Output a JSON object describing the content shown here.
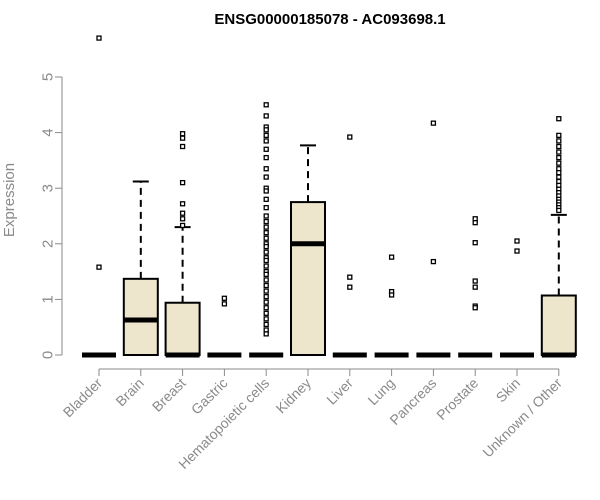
{
  "chart_data": {
    "type": "boxplot",
    "title": "ENSG00000185078 - AC093698.1",
    "ylabel": "Expression",
    "xlabel": "",
    "ylim": [
      0,
      5.6
    ],
    "yticks": [
      0,
      1,
      2,
      3,
      4,
      5
    ],
    "grid": false,
    "legend": "none",
    "colors": {
      "box_fill": "#ede6cd",
      "stroke": "#000000",
      "axis": "#8a8a8a"
    },
    "categories": [
      "Bladder",
      "Brain",
      "Breast",
      "Gastric",
      "Hematopoietic cells",
      "Kidney",
      "Liver",
      "Lung",
      "Pancreas",
      "Prostate",
      "Skin",
      "Unknown / Other"
    ],
    "boxes": [
      {
        "category": "Bladder",
        "whisker_low": 0,
        "q1": 0,
        "median": 0,
        "q3": 0,
        "whisker_high": 0,
        "outliers": [
          5.7,
          1.58
        ]
      },
      {
        "category": "Brain",
        "whisker_low": 0,
        "q1": 0,
        "median": 0.63,
        "q3": 1.37,
        "whisker_high": 3.12,
        "outliers": []
      },
      {
        "category": "Breast",
        "whisker_low": 0,
        "q1": 0,
        "median": 0,
        "q3": 0.94,
        "whisker_high": 2.3,
        "outliers": [
          3.98,
          3.9,
          3.75,
          3.1,
          2.72,
          2.55,
          2.45,
          2.33
        ]
      },
      {
        "category": "Gastric",
        "whisker_low": 0,
        "q1": 0,
        "median": 0,
        "q3": 0,
        "whisker_high": 0,
        "outliers": [
          1.02,
          0.92
        ]
      },
      {
        "category": "Hematopoietic cells",
        "whisker_low": 0,
        "q1": 0,
        "median": 0,
        "q3": 0,
        "whisker_high": 0,
        "outliers": [
          4.5,
          4.3,
          4.1,
          4.05,
          3.95,
          3.85,
          3.7,
          3.55,
          3.35,
          3.2,
          3.0,
          2.95,
          2.8,
          2.65,
          2.5,
          2.4,
          2.3,
          2.2,
          2.1,
          2.0,
          1.95,
          1.85,
          1.75,
          1.7,
          1.6,
          1.5,
          1.45,
          1.35,
          1.25,
          1.15,
          1.05,
          0.95,
          0.85,
          0.75,
          0.65,
          0.55,
          0.45,
          0.38
        ]
      },
      {
        "category": "Kidney",
        "whisker_low": 0,
        "q1": 0,
        "median": 2.0,
        "q3": 2.75,
        "whisker_high": 3.77,
        "outliers": []
      },
      {
        "category": "Liver",
        "whisker_low": 0,
        "q1": 0,
        "median": 0,
        "q3": 0,
        "whisker_high": 0,
        "outliers": [
          3.92,
          1.4,
          1.22
        ]
      },
      {
        "category": "Lung",
        "whisker_low": 0,
        "q1": 0,
        "median": 0,
        "q3": 0,
        "whisker_high": 0,
        "outliers": [
          1.76,
          1.14,
          1.08
        ]
      },
      {
        "category": "Pancreas",
        "whisker_low": 0,
        "q1": 0,
        "median": 0,
        "q3": 0,
        "whisker_high": 0,
        "outliers": [
          4.17,
          1.68
        ]
      },
      {
        "category": "Prostate",
        "whisker_low": 0,
        "q1": 0,
        "median": 0,
        "q3": 0,
        "whisker_high": 0,
        "outliers": [
          2.45,
          2.38,
          2.02,
          1.33,
          1.22,
          0.88,
          0.85
        ]
      },
      {
        "category": "Skin",
        "whisker_low": 0,
        "q1": 0,
        "median": 0,
        "q3": 0,
        "whisker_high": 0,
        "outliers": [
          2.05,
          1.87
        ]
      },
      {
        "category": "Unknown / Other",
        "whisker_low": 0,
        "q1": 0,
        "median": 0,
        "q3": 1.07,
        "whisker_high": 2.52,
        "outliers": [
          4.25,
          3.95,
          3.85,
          3.75,
          3.65,
          3.55,
          3.45,
          3.35,
          3.28,
          3.2,
          3.12,
          3.05,
          2.98,
          2.92,
          2.86,
          2.8,
          2.75,
          2.7,
          2.65,
          2.6
        ]
      }
    ]
  }
}
